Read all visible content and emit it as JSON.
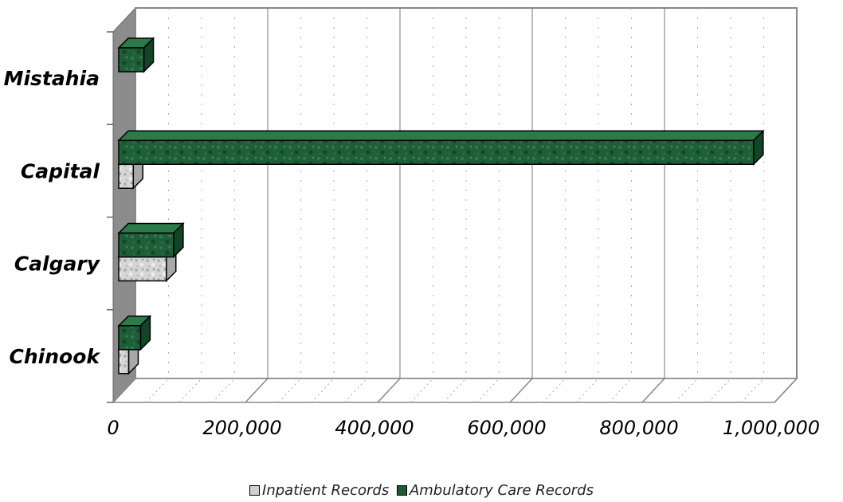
{
  "chart_data": {
    "type": "bar",
    "orientation": "horizontal",
    "three_d": true,
    "categories": [
      "Mistahia",
      "Capital",
      "Calgary",
      "Chinook"
    ],
    "series": [
      {
        "name": "Inpatient Records",
        "values": [
          0,
          22000,
          72000,
          15000
        ],
        "color": "#c8c8c8"
      },
      {
        "name": "Ambulatory Care Records",
        "values": [
          38000,
          960000,
          83000,
          33000
        ],
        "color": "#1d5a35"
      }
    ],
    "tick_labels": [
      "0",
      "200,000",
      "400,000",
      "600,000",
      "800,000",
      "1,000,000"
    ],
    "xlim": [
      0,
      1000000
    ],
    "grid": true,
    "legend_position": "bottom"
  }
}
